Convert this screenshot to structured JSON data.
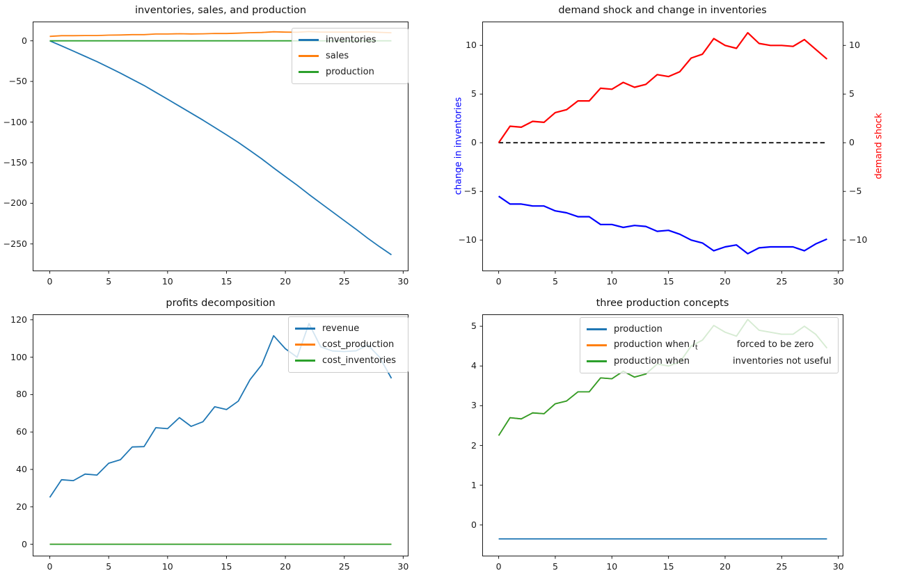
{
  "figure": {
    "background": "#ffffff",
    "colors": {
      "spine": "#1a1a1a",
      "tick_text": "#1a1a1a",
      "legend_border": "#cccccc",
      "tab_blue": "#1f77b4",
      "tab_orange": "#ff7f0e",
      "tab_green": "#2ca02c",
      "pure_blue": "#0000ff",
      "pure_red": "#ff0000",
      "dashed_black": "#000000"
    }
  },
  "chart_data": [
    {
      "id": "inventories-sales-production",
      "type": "line",
      "title": "inventories, sales, and production",
      "x": [
        0,
        1,
        2,
        3,
        4,
        5,
        6,
        7,
        8,
        9,
        10,
        11,
        12,
        13,
        14,
        15,
        16,
        17,
        18,
        19,
        20,
        21,
        22,
        23,
        24,
        25,
        26,
        27,
        28,
        29
      ],
      "xlim": [
        -1.45,
        30.45
      ],
      "ylim": [
        -283.6,
        23.7
      ],
      "xticks": [
        {
          "v": 0,
          "label": "0"
        },
        {
          "v": 5,
          "label": "5"
        },
        {
          "v": 10,
          "label": "10"
        },
        {
          "v": 15,
          "label": "15"
        },
        {
          "v": 20,
          "label": "20"
        },
        {
          "v": 25,
          "label": "25"
        },
        {
          "v": 30,
          "label": "30"
        }
      ],
      "yticks": [
        {
          "v": 0,
          "label": "0"
        },
        {
          "v": -50,
          "label": "−50"
        },
        {
          "v": -100,
          "label": "−100"
        },
        {
          "v": -150,
          "label": "−150"
        },
        {
          "v": -200,
          "label": "−200"
        },
        {
          "v": -250,
          "label": "−250"
        }
      ],
      "series": [
        {
          "id": "inventories",
          "color": "#1f77b4",
          "lw": 1.8,
          "values": [
            0,
            -6.3,
            -12.6,
            -19.1,
            -25.6,
            -32.6,
            -39.8,
            -47.4,
            -55.0,
            -63.4,
            -71.8,
            -80.5,
            -89.0,
            -97.6,
            -106.7,
            -115.7,
            -125.1,
            -135.1,
            -145.4,
            -156.5,
            -167.2,
            -177.7,
            -189.1,
            -199.9,
            -210.6,
            -221.3,
            -232.0,
            -243.1,
            -253.5,
            -263.4
          ]
        },
        {
          "id": "sales",
          "color": "#ff7f0e",
          "lw": 1.8,
          "values": [
            5.5,
            6.3,
            6.3,
            6.5,
            6.5,
            7.0,
            7.2,
            7.6,
            7.6,
            8.4,
            8.4,
            8.7,
            8.5,
            8.6,
            9.1,
            9.0,
            9.4,
            10.0,
            10.3,
            11.1,
            10.7,
            10.5,
            11.4,
            10.8,
            10.7,
            10.7,
            10.7,
            11.1,
            10.4,
            9.9
          ]
        },
        {
          "id": "production",
          "color": "#2ca02c",
          "lw": 1.8,
          "values": [
            0,
            0,
            0,
            0,
            0,
            0,
            0,
            0,
            0,
            0,
            0,
            0,
            0,
            0,
            0,
            0,
            0,
            0,
            0,
            0,
            0,
            0,
            0,
            0,
            0,
            0,
            0,
            0,
            0,
            0
          ]
        }
      ],
      "legend": {
        "loc": "upper right",
        "items": [
          {
            "color": "#1f77b4",
            "label": "inventories"
          },
          {
            "color": "#ff7f0e",
            "label": "sales"
          },
          {
            "color": "#2ca02c",
            "label": "production"
          }
        ]
      }
    },
    {
      "id": "demand-shock-and-change-in-inventories",
      "type": "line",
      "title": "demand shock and change in inventories",
      "x": [
        0,
        1,
        2,
        3,
        4,
        5,
        6,
        7,
        8,
        9,
        10,
        11,
        12,
        13,
        14,
        15,
        16,
        17,
        18,
        19,
        20,
        21,
        22,
        23,
        24,
        25,
        26,
        27,
        28,
        29
      ],
      "xlim": [
        -1.45,
        30.45
      ],
      "ylim": [
        -13.2,
        12.45
      ],
      "xticks": [
        {
          "v": 0,
          "label": "0"
        },
        {
          "v": 5,
          "label": "5"
        },
        {
          "v": 10,
          "label": "10"
        },
        {
          "v": 15,
          "label": "15"
        },
        {
          "v": 20,
          "label": "20"
        },
        {
          "v": 25,
          "label": "25"
        },
        {
          "v": 30,
          "label": "30"
        }
      ],
      "yticks": [
        {
          "v": 10,
          "label": "10"
        },
        {
          "v": 5,
          "label": "5"
        },
        {
          "v": 0,
          "label": "0"
        },
        {
          "v": -5,
          "label": "−5"
        },
        {
          "v": -10,
          "label": "−10"
        }
      ],
      "yticks_right": [
        {
          "v": 10,
          "label": "10"
        },
        {
          "v": 5,
          "label": "5"
        },
        {
          "v": 0,
          "label": "0"
        },
        {
          "v": -5,
          "label": "−5"
        },
        {
          "v": -10,
          "label": "−10"
        }
      ],
      "ylabels": [
        {
          "side": "left",
          "text": "change in inventories",
          "color": "#0000ff"
        },
        {
          "side": "right",
          "text": "demand shock",
          "color": "#ff0000"
        }
      ],
      "zero_line": {
        "y": 0,
        "x_start": 0,
        "x_end": 29,
        "color": "#000000",
        "style": "dashed",
        "lw": 1.8
      },
      "series": [
        {
          "id": "change-in-inventories",
          "color": "#0000ff",
          "lw": 2.2,
          "values": [
            -5.5,
            -6.3,
            -6.3,
            -6.5,
            -6.5,
            -7.0,
            -7.2,
            -7.6,
            -7.6,
            -8.4,
            -8.4,
            -8.7,
            -8.5,
            -8.6,
            -9.1,
            -9.0,
            -9.4,
            -10.0,
            -10.3,
            -11.1,
            -10.7,
            -10.5,
            -11.4,
            -10.8,
            -10.7,
            -10.7,
            -10.7,
            -11.1,
            -10.4,
            -9.9
          ]
        },
        {
          "id": "demand-shock",
          "color": "#ff0000",
          "lw": 2.2,
          "values": [
            0,
            1.7,
            1.6,
            2.2,
            2.1,
            3.1,
            3.4,
            4.3,
            4.3,
            5.6,
            5.5,
            6.2,
            5.7,
            6.0,
            7.0,
            6.8,
            7.3,
            8.7,
            9.1,
            10.7,
            10.0,
            9.7,
            11.3,
            10.2,
            10.0,
            10.0,
            9.9,
            10.6,
            9.6,
            8.6
          ]
        }
      ]
    },
    {
      "id": "profits-decomposition",
      "type": "line",
      "title": "profits decomposition",
      "x": [
        0,
        1,
        2,
        3,
        4,
        5,
        6,
        7,
        8,
        9,
        10,
        11,
        12,
        13,
        14,
        15,
        16,
        17,
        18,
        19,
        20,
        21,
        22,
        23,
        24,
        25,
        26,
        27,
        28,
        29
      ],
      "xlim": [
        -1.45,
        30.45
      ],
      "ylim": [
        -6.47,
        122.9
      ],
      "xticks": [
        {
          "v": 0,
          "label": "0"
        },
        {
          "v": 5,
          "label": "5"
        },
        {
          "v": 10,
          "label": "10"
        },
        {
          "v": 15,
          "label": "15"
        },
        {
          "v": 20,
          "label": "20"
        },
        {
          "v": 25,
          "label": "25"
        },
        {
          "v": 30,
          "label": "30"
        }
      ],
      "yticks": [
        {
          "v": 120,
          "label": "120"
        },
        {
          "v": 100,
          "label": "100"
        },
        {
          "v": 80,
          "label": "80"
        },
        {
          "v": 60,
          "label": "60"
        },
        {
          "v": 40,
          "label": "40"
        },
        {
          "v": 20,
          "label": "20"
        },
        {
          "v": 0,
          "label": "0"
        }
      ],
      "series": [
        {
          "id": "revenue",
          "color": "#1f77b4",
          "lw": 1.8,
          "values": [
            25,
            34.5,
            34,
            37.5,
            37,
            43.3,
            45.2,
            52,
            52.2,
            62.3,
            61.8,
            67.7,
            63,
            65.5,
            73.5,
            72,
            76.5,
            88,
            96,
            111.5,
            104.5,
            100,
            118,
            105.5,
            103.3,
            103,
            103.4,
            106.5,
            100,
            88.7
          ]
        },
        {
          "id": "cost_production",
          "color": "#ff7f0e",
          "lw": 1.8,
          "values": [
            0,
            0,
            0,
            0,
            0,
            0,
            0,
            0,
            0,
            0,
            0,
            0,
            0,
            0,
            0,
            0,
            0,
            0,
            0,
            0,
            0,
            0,
            0,
            0,
            0,
            0,
            0,
            0,
            0,
            0
          ]
        },
        {
          "id": "cost_inventories",
          "color": "#2ca02c",
          "lw": 1.8,
          "values": [
            0,
            0,
            0,
            0,
            0,
            0,
            0,
            0,
            0,
            0,
            0,
            0,
            0,
            0,
            0,
            0,
            0,
            0,
            0,
            0,
            0,
            0,
            0,
            0,
            0,
            0,
            0,
            0,
            0,
            0
          ]
        }
      ],
      "legend": {
        "loc": "upper right",
        "items": [
          {
            "color": "#1f77b4",
            "label": "revenue"
          },
          {
            "color": "#ff7f0e",
            "label": "cost_production"
          },
          {
            "color": "#2ca02c",
            "label": "cost_inventories"
          }
        ]
      }
    },
    {
      "id": "three-production-concepts",
      "type": "line",
      "title": "three production concepts",
      "x": [
        0,
        1,
        2,
        3,
        4,
        5,
        6,
        7,
        8,
        9,
        10,
        11,
        12,
        13,
        14,
        15,
        16,
        17,
        18,
        19,
        20,
        21,
        22,
        23,
        24,
        25,
        26,
        27,
        28,
        29
      ],
      "xlim": [
        -1.45,
        30.45
      ],
      "ylim": [
        -0.79,
        5.3
      ],
      "xticks": [
        {
          "v": 0,
          "label": "0"
        },
        {
          "v": 5,
          "label": "5"
        },
        {
          "v": 10,
          "label": "10"
        },
        {
          "v": 15,
          "label": "15"
        },
        {
          "v": 20,
          "label": "20"
        },
        {
          "v": 25,
          "label": "25"
        },
        {
          "v": 30,
          "label": "30"
        }
      ],
      "yticks": [
        {
          "v": 5,
          "label": "5"
        },
        {
          "v": 4,
          "label": "4"
        },
        {
          "v": 3,
          "label": "3"
        },
        {
          "v": 2,
          "label": "2"
        },
        {
          "v": 1,
          "label": "1"
        },
        {
          "v": 0,
          "label": "0"
        }
      ],
      "series": [
        {
          "id": "production",
          "color": "#1f77b4",
          "lw": 1.8,
          "values": [
            -0.35,
            -0.35,
            -0.35,
            -0.35,
            -0.35,
            -0.35,
            -0.35,
            -0.35,
            -0.35,
            -0.35,
            -0.35,
            -0.35,
            -0.35,
            -0.35,
            -0.35,
            -0.35,
            -0.35,
            -0.35,
            -0.35,
            -0.35,
            -0.35,
            -0.35,
            -0.35,
            -0.35,
            -0.35,
            -0.35,
            -0.35,
            -0.35,
            -0.35,
            -0.35
          ]
        },
        {
          "id": "production-when-It-forced-to-be-zero",
          "color": "#ff7f0e",
          "lw": 1.8,
          "values": [
            2.25,
            2.7,
            2.67,
            2.82,
            2.8,
            3.05,
            3.12,
            3.35,
            3.35,
            3.7,
            3.68,
            3.87,
            3.72,
            3.8,
            4.05,
            4.0,
            4.1,
            4.5,
            4.65,
            5.02,
            4.85,
            4.75,
            5.17,
            4.9,
            4.85,
            4.8,
            4.8,
            5.0,
            4.8,
            4.45
          ]
        },
        {
          "id": "production-when-inventories-not-useful",
          "color": "#2ca02c",
          "lw": 1.8,
          "values": [
            2.25,
            2.7,
            2.67,
            2.82,
            2.8,
            3.05,
            3.12,
            3.35,
            3.35,
            3.7,
            3.68,
            3.87,
            3.72,
            3.8,
            4.05,
            4.0,
            4.1,
            4.5,
            4.65,
            5.02,
            4.85,
            4.75,
            5.17,
            4.9,
            4.85,
            4.8,
            4.8,
            5.0,
            4.8,
            4.45
          ]
        }
      ],
      "legend": {
        "loc": "upper center-right",
        "items": [
          {
            "color": "#1f77b4",
            "label": "production"
          },
          {
            "color": "#ff7f0e",
            "parts": [
              {
                "text": "production when "
              },
              {
                "math": "I",
                "sub": "t"
              },
              {
                "gap": 56
              },
              {
                "text": "forced to be zero"
              }
            ]
          },
          {
            "color": "#2ca02c",
            "parts": [
              {
                "text": "production when"
              },
              {
                "gap": 62
              },
              {
                "text": "inventories not useful"
              }
            ]
          }
        ]
      }
    }
  ]
}
